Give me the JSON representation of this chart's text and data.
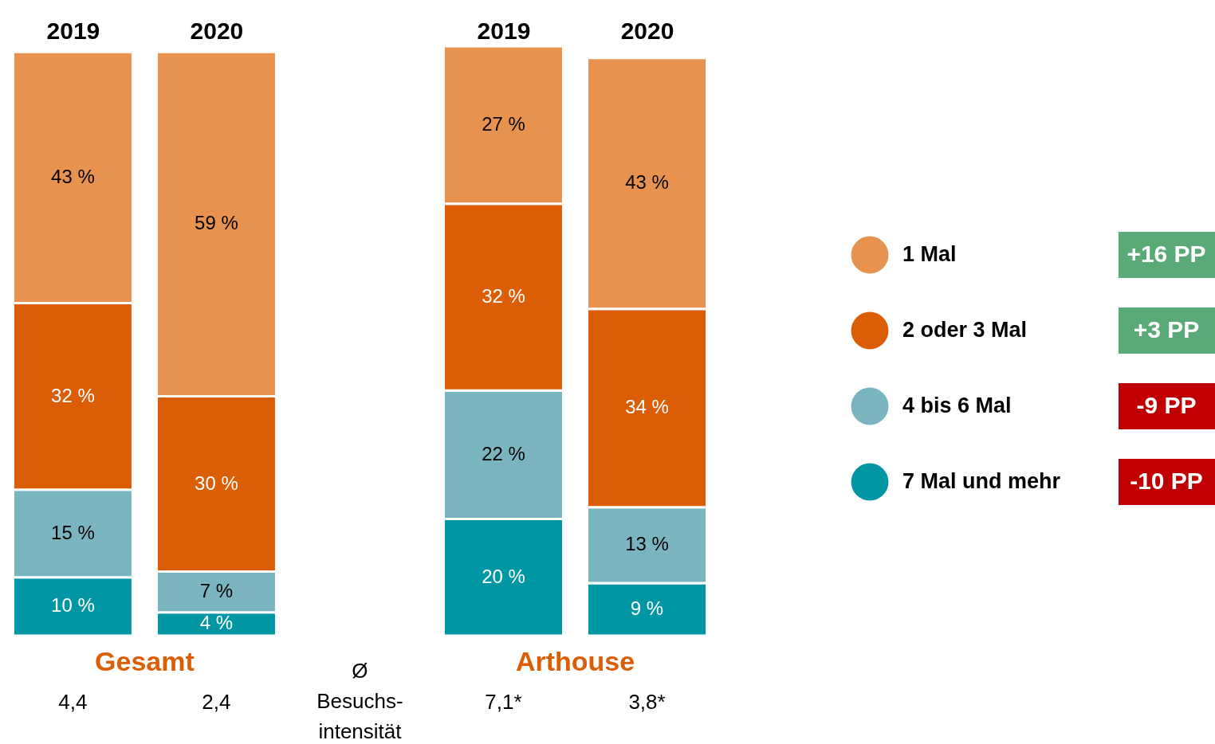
{
  "chart_data": {
    "type": "bar",
    "stacked": true,
    "legend": "right",
    "categories": [
      "2019",
      "2020",
      "2019",
      "2020"
    ],
    "series": [
      {
        "name": "7 Mal und mehr",
        "color": "#0096a3",
        "values": [
          10,
          4,
          20,
          9
        ],
        "value_labels": [
          "10 %",
          "4 %",
          "20 %",
          "9 %"
        ]
      },
      {
        "name": "4 bis 6 Mal",
        "color": "#7ab5bf",
        "values": [
          15,
          7,
          22,
          13
        ],
        "value_labels": [
          "15 %",
          "7 %",
          "22 %",
          "13 %"
        ]
      },
      {
        "name": "2 oder 3 Mal",
        "color": "#db5e06",
        "values": [
          32,
          30,
          32,
          34
        ],
        "value_labels": [
          "32 %",
          "30 %",
          "32 %",
          "34 %"
        ]
      },
      {
        "name": "1 Mal",
        "color": "#e8924f",
        "values": [
          43,
          59,
          27,
          43
        ],
        "value_labels": [
          "43 %",
          "59 %",
          "27 %",
          "43 %"
        ]
      }
    ],
    "annotations": [
      "Gesamt",
      "Arthouse",
      "4,4",
      "2,4",
      "Ø Besuchs- intensität",
      "7,1*",
      "3,8*",
      "-10 PP",
      "-9 PP",
      "+3 PP",
      "+16 PP"
    ]
  }
}
